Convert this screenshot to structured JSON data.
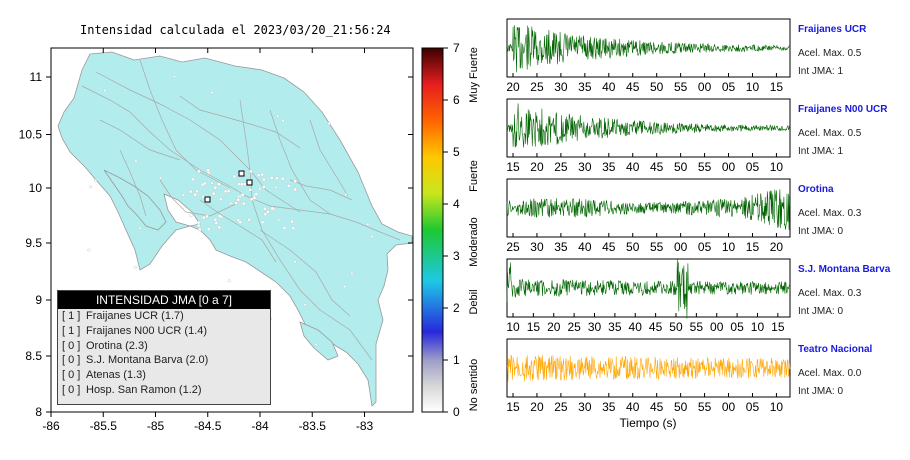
{
  "map": {
    "title": "Intensidad calculada el 2023/03/20_21:56:24",
    "x_ticks": [
      "-86",
      "-85.5",
      "-85",
      "-84.5",
      "-84",
      "-83.5",
      "-83"
    ],
    "y_ticks": [
      "11",
      "10.5",
      "10",
      "9.5",
      "9",
      "8.5",
      "8"
    ],
    "legend": {
      "title": "INTENSIDAD JMA [0 a 7]",
      "rows": [
        {
          "level": "[ 1 ]",
          "text": "Fraijanes UCR (1.7)"
        },
        {
          "level": "[ 1 ]",
          "text": "Fraijanes N00 UCR (1.4)"
        },
        {
          "level": "[ 0 ]",
          "text": "Orotina (2.3)"
        },
        {
          "level": "[ 0 ]",
          "text": "S.J. Montana Barva (2.0)"
        },
        {
          "level": "[ 0 ]",
          "text": "Atenas (1.3)"
        },
        {
          "level": "[ 0 ]",
          "text": "Hosp. San Ramon (1.2)"
        }
      ]
    },
    "land_color": "#b2ecec"
  },
  "colorbar": {
    "ticks": [
      "7",
      "6",
      "5",
      "4",
      "3",
      "2",
      "1",
      "0"
    ],
    "categories": [
      "Muy Fuerte",
      "Fuerte",
      "Moderado",
      "Debil",
      "No sentido"
    ]
  },
  "waveforms": {
    "xlabel": "Tiempo (s)",
    "panels": [
      {
        "name": "Fraijanes UCR",
        "accel": "Acel. Max. 0.5",
        "jma": "Int JMA: 1",
        "color": "#006400",
        "ticks": [
          "20",
          "25",
          "30",
          "35",
          "40",
          "45",
          "50",
          "55",
          "00",
          "05",
          "10",
          "15"
        ],
        "profile": "decay"
      },
      {
        "name": "Fraijanes N00 UCR",
        "accel": "Acel. Max. 0.5",
        "jma": "Int JMA: 1",
        "color": "#006400",
        "ticks": [
          "15",
          "20",
          "25",
          "30",
          "35",
          "40",
          "45",
          "50",
          "55",
          "00",
          "05",
          "10"
        ],
        "profile": "decay"
      },
      {
        "name": "Orotina",
        "accel": "Acel. Max. 0.3",
        "jma": "Int JMA: 0",
        "color": "#006400",
        "ticks": [
          "25",
          "30",
          "35",
          "40",
          "45",
          "50",
          "55",
          "00",
          "05",
          "10",
          "15",
          "20"
        ],
        "profile": "rise"
      },
      {
        "name": "S.J. Montana Barva",
        "accel": "Acel. Max. 0.3",
        "jma": "Int JMA: 0",
        "color": "#006400",
        "ticks": [
          "10",
          "15",
          "20",
          "25",
          "30",
          "35",
          "40",
          "45",
          "50",
          "55",
          "00",
          "05",
          "10",
          "15"
        ],
        "profile": "spike"
      },
      {
        "name": "Teatro Nacional",
        "accel": "Acel. Max. 0.0",
        "jma": "Int JMA: 0",
        "color": "#ffa500",
        "ticks": [
          "15",
          "20",
          "25",
          "30",
          "35",
          "40",
          "45",
          "50",
          "55",
          "00",
          "05",
          "10"
        ],
        "profile": "flat"
      }
    ]
  },
  "chart_data": {
    "type": "line",
    "title": "Intensidad calculada el 2023/03/20_21:56:24",
    "xlabel": "Tiempo (s)",
    "series": [
      {
        "name": "Fraijanes UCR",
        "peak_accel": 0.5,
        "jma": 1
      },
      {
        "name": "Fraijanes N00 UCR",
        "peak_accel": 0.5,
        "jma": 1
      },
      {
        "name": "Orotina",
        "peak_accel": 0.3,
        "jma": 0
      },
      {
        "name": "S.J. Montana Barva",
        "peak_accel": 0.3,
        "jma": 0
      },
      {
        "name": "Teatro Nacional",
        "peak_accel": 0.0,
        "jma": 0
      }
    ],
    "map_xlim": [
      -86,
      -82.5
    ],
    "map_ylim": [
      8,
      11.3
    ],
    "colorbar_range": [
      0,
      7
    ]
  }
}
